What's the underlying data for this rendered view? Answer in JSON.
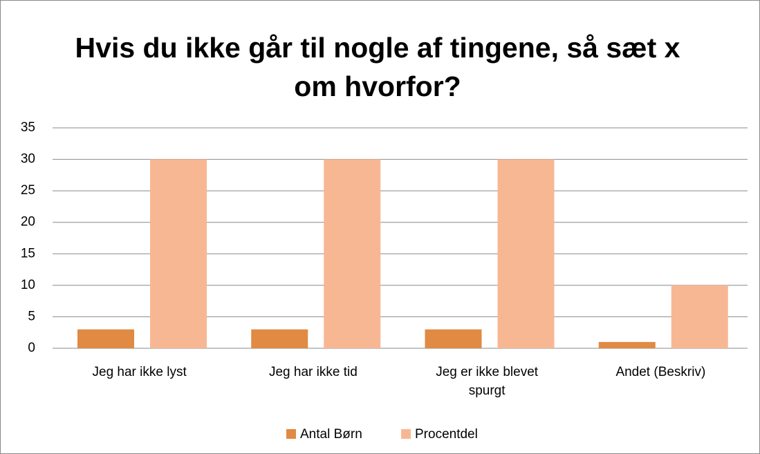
{
  "chart_data": {
    "type": "bar",
    "title": "Hvis du ikke går til nogle af tingene, så sæt x om hvorfor?",
    "categories": [
      "Jeg har ikke lyst",
      "Jeg har ikke tid",
      "Jeg er ikke blevet spurgt",
      "Andet (Beskriv)"
    ],
    "series": [
      {
        "name": "Antal Børn",
        "color": "#e08a43",
        "values": [
          3,
          3,
          3,
          1
        ]
      },
      {
        "name": "Procentdel",
        "color": "#f8b793",
        "values": [
          30,
          30,
          30,
          10
        ]
      }
    ],
    "ylim": [
      0,
      35
    ],
    "yticks": [
      0,
      5,
      10,
      15,
      20,
      25,
      30,
      35
    ],
    "grid": true,
    "legend": "bottom"
  }
}
